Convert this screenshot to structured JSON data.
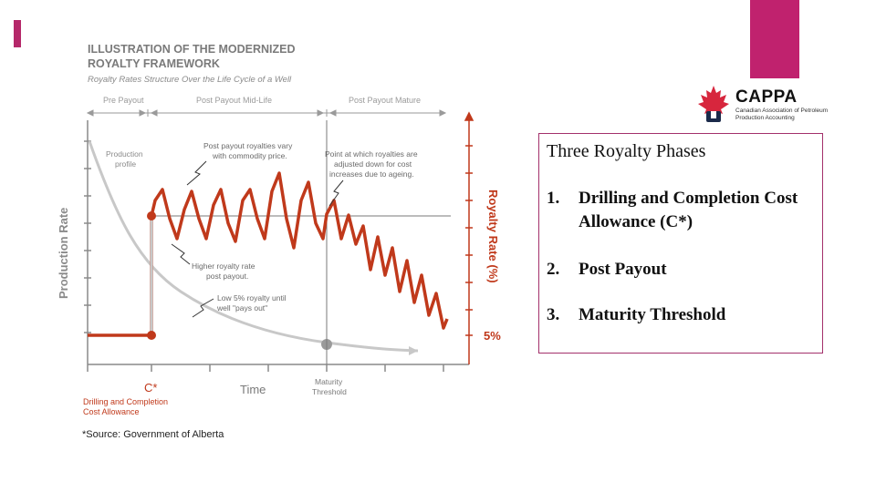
{
  "colors": {
    "accent": "#b5286a",
    "corner": "#c0226e",
    "curve": "#c0391b",
    "gray": "#c8c8c8",
    "axis": "#8a8a8a",
    "box_border": "#a3306b"
  },
  "figure": {
    "title_line1": "ILLUSTRATION OF THE MODERNIZED",
    "title_line2": "ROYALTY FRAMEWORK",
    "subtitle": "Royalty Rates Structure Over the Life Cycle of a Well",
    "phase_pre": "Pre Payout",
    "phase_mid": "Post Payout Mid-Life",
    "phase_mature": "Post Payout Mature",
    "y_left_label": "Production Rate",
    "y_right_label": "Royalty Rate (%)",
    "x_label": "Time",
    "five_pct": "5%",
    "c_star": "C*",
    "c_star_desc_1": "Drilling and Completion",
    "c_star_desc_2": "Cost Allowance",
    "maturity_1": "Maturity",
    "maturity_2": "Threshold",
    "annot_production_1": "Production",
    "annot_production_2": "profile",
    "annot_vary_1": "Post payout royalties vary",
    "annot_vary_2": "with commodity price.",
    "annot_point_1": "Point at which royalties are",
    "annot_point_2": "adjusted down for cost",
    "annot_point_3": "increases due to ageing.",
    "annot_higher_1": "Higher royalty rate",
    "annot_higher_2": "post payout.",
    "annot_low_1": "Low 5% royalty until",
    "annot_low_2": "well \"pays out\""
  },
  "source": "*Source: Government of Alberta",
  "logo": {
    "name": "CAPPA",
    "sub": "Canadian Association of Petroleum Production Accounting"
  },
  "phases_box": {
    "title": "Three Royalty Phases",
    "items": [
      {
        "num": "1.",
        "text": "Drilling and Completion Cost Allowance (C*)"
      },
      {
        "num": "2.",
        "text": "Post Payout"
      },
      {
        "num": "3.",
        "text": "Maturity Threshold"
      }
    ]
  }
}
